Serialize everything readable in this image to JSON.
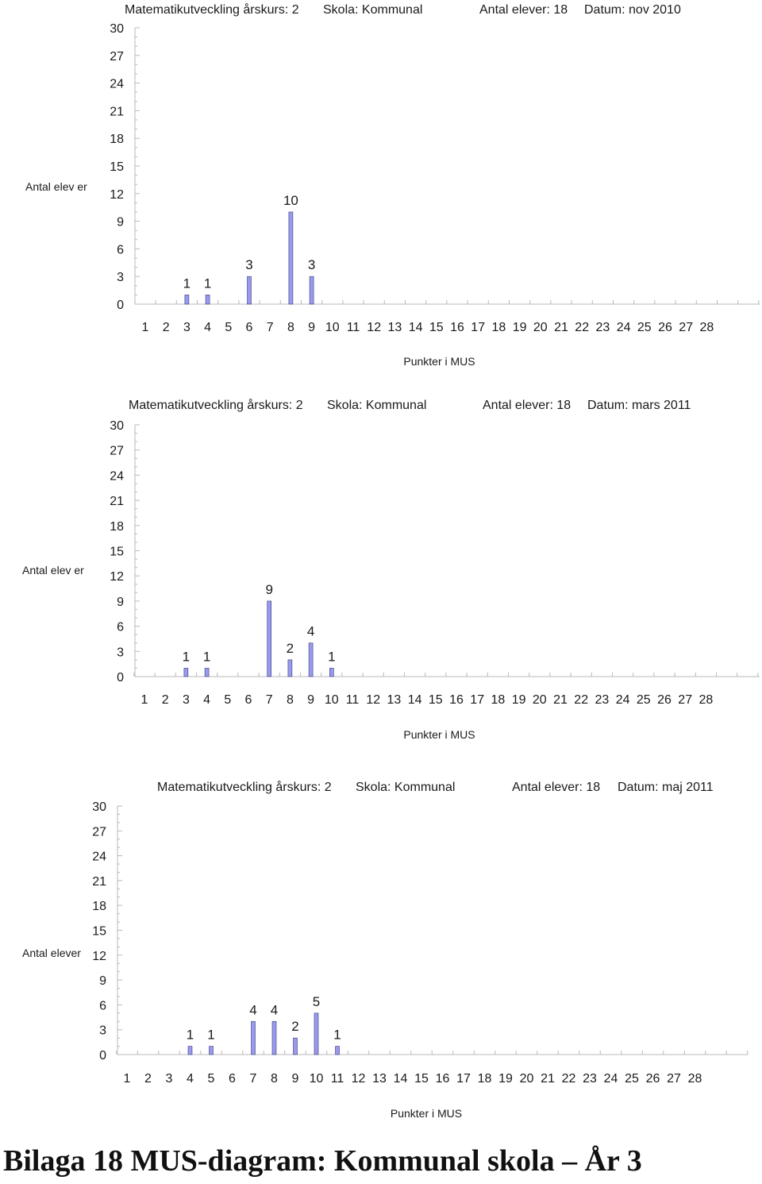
{
  "footer": {
    "title": "Bilaga 18 MUS-diagram: Kommunal skola – År 3"
  },
  "colors": {
    "bar_fill": "#9999ee",
    "bar_stroke": "#3a3a7a",
    "axis": "#b8b8b8"
  },
  "chart_data": [
    {
      "type": "bar",
      "header": {
        "course": "Matematikutveckling årskurs: 2",
        "school": "Skola: Kommunal",
        "students": "Antal elever: 18",
        "date": "Datum: nov 2010"
      },
      "xlabel": "Punkter i MUS",
      "ylabel": "Antal elev er",
      "ylim": [
        0,
        30
      ],
      "yticks": [
        0,
        3,
        6,
        9,
        12,
        15,
        18,
        21,
        24,
        27,
        30
      ],
      "categories": [
        1,
        2,
        3,
        4,
        5,
        6,
        7,
        8,
        9,
        10,
        11,
        12,
        13,
        14,
        15,
        16,
        17,
        18,
        19,
        20,
        21,
        22,
        23,
        24,
        25,
        26,
        27,
        28
      ],
      "values": [
        0,
        0,
        1,
        1,
        0,
        3,
        0,
        10,
        3,
        0,
        0,
        0,
        0,
        0,
        0,
        0,
        0,
        0,
        0,
        0,
        0,
        0,
        0,
        0,
        0,
        0,
        0,
        0
      ],
      "grid": false
    },
    {
      "type": "bar",
      "header": {
        "course": "Matematikutveckling årskurs: 2",
        "school": "Skola: Kommunal",
        "students": "Antal elever: 18",
        "date": "Datum: mars 2011"
      },
      "xlabel": "Punkter i MUS",
      "ylabel": "Antal elev er",
      "ylim": [
        0,
        30
      ],
      "yticks": [
        0,
        3,
        6,
        9,
        12,
        15,
        18,
        21,
        24,
        27,
        30
      ],
      "categories": [
        1,
        2,
        3,
        4,
        5,
        6,
        7,
        8,
        9,
        10,
        11,
        12,
        13,
        14,
        15,
        16,
        17,
        18,
        19,
        20,
        21,
        22,
        23,
        24,
        25,
        26,
        27,
        28
      ],
      "values": [
        0,
        0,
        1,
        1,
        0,
        0,
        9,
        2,
        4,
        1,
        0,
        0,
        0,
        0,
        0,
        0,
        0,
        0,
        0,
        0,
        0,
        0,
        0,
        0,
        0,
        0,
        0,
        0
      ],
      "grid": false
    },
    {
      "type": "bar",
      "header": {
        "course": "Matematikutveckling årskurs: 2",
        "school": "Skola: Kommunal",
        "students": "Antal elever: 18",
        "date": "Datum: maj 2011"
      },
      "xlabel": "Punkter i MUS",
      "ylabel": "Antal elever",
      "ylim": [
        0,
        30
      ],
      "yticks": [
        0,
        3,
        6,
        9,
        12,
        15,
        18,
        21,
        24,
        27,
        30
      ],
      "categories": [
        1,
        2,
        3,
        4,
        5,
        6,
        7,
        8,
        9,
        10,
        11,
        12,
        13,
        14,
        15,
        16,
        17,
        18,
        19,
        20,
        21,
        22,
        23,
        24,
        25,
        26,
        27,
        28
      ],
      "values": [
        0,
        0,
        0,
        1,
        1,
        0,
        4,
        4,
        2,
        5,
        1,
        0,
        0,
        0,
        0,
        0,
        0,
        0,
        0,
        0,
        0,
        0,
        0,
        0,
        0,
        0,
        0,
        0
      ],
      "grid": false
    }
  ]
}
